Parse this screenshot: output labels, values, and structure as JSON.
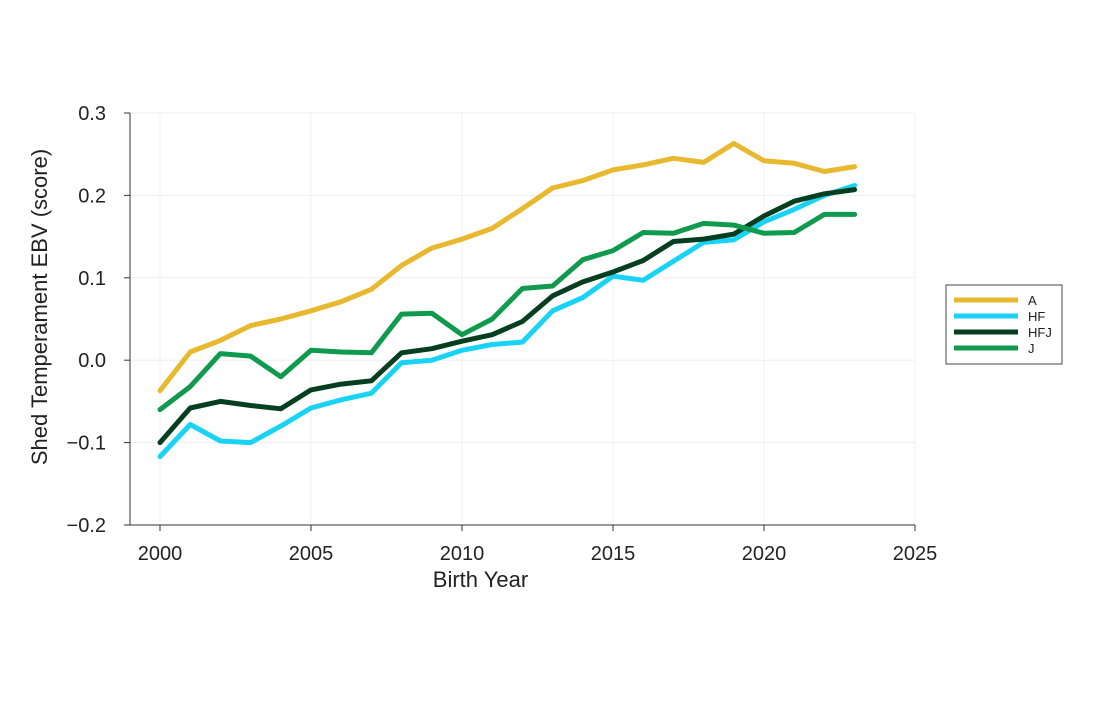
{
  "chart_data": {
    "type": "line",
    "title": "",
    "xlabel": "Birth Year",
    "ylabel": "Shed Temperament EBV (score)",
    "xlim": [
      1999,
      2025
    ],
    "ylim": [
      -0.2,
      0.3
    ],
    "xticks": [
      2000,
      2005,
      2010,
      2015,
      2020,
      2025
    ],
    "xtick_labels": [
      "2000",
      "2005",
      "2010",
      "2015",
      "2020",
      "2025"
    ],
    "yticks": [
      -0.2,
      -0.1,
      0.0,
      0.1,
      0.2,
      0.3
    ],
    "ytick_labels": [
      "−0.2",
      "−0.1",
      "0.0",
      "0.1",
      "0.2",
      "0.3"
    ],
    "grid": true,
    "legend_position": "right",
    "x": [
      2000,
      2001,
      2002,
      2003,
      2004,
      2005,
      2006,
      2007,
      2008,
      2009,
      2010,
      2011,
      2012,
      2013,
      2014,
      2015,
      2016,
      2017,
      2018,
      2019,
      2020,
      2021,
      2022,
      2023
    ],
    "series": [
      {
        "name": "A",
        "color": "#E8B92E",
        "values": [
          -0.037,
          0.01,
          0.024,
          0.042,
          0.05,
          0.06,
          0.071,
          0.086,
          0.115,
          0.136,
          0.147,
          0.16,
          0.184,
          0.209,
          0.218,
          0.231,
          0.237,
          0.245,
          0.24,
          0.263,
          0.242,
          0.239,
          0.229,
          0.235
        ]
      },
      {
        "name": "HF",
        "color": "#18D3F5",
        "values": [
          -0.117,
          -0.078,
          -0.098,
          -0.1,
          -0.08,
          -0.058,
          -0.048,
          -0.04,
          -0.003,
          0.0,
          0.012,
          0.019,
          0.022,
          0.06,
          0.076,
          0.102,
          0.097,
          0.12,
          0.143,
          0.146,
          0.168,
          0.183,
          0.2,
          0.212
        ]
      },
      {
        "name": "HFJ",
        "color": "#063F1F",
        "values": [
          -0.1,
          -0.058,
          -0.05,
          -0.055,
          -0.059,
          -0.036,
          -0.029,
          -0.025,
          0.009,
          0.014,
          0.023,
          0.031,
          0.047,
          0.078,
          0.095,
          0.107,
          0.121,
          0.144,
          0.147,
          0.153,
          0.175,
          0.193,
          0.202,
          0.207
        ]
      },
      {
        "name": "J",
        "color": "#0F9A4E",
        "values": [
          -0.06,
          -0.032,
          0.008,
          0.005,
          -0.02,
          0.012,
          0.01,
          0.009,
          0.056,
          0.057,
          0.031,
          0.05,
          0.087,
          0.09,
          0.122,
          0.133,
          0.155,
          0.154,
          0.166,
          0.164,
          0.154,
          0.155,
          0.177,
          0.177
        ]
      }
    ]
  }
}
